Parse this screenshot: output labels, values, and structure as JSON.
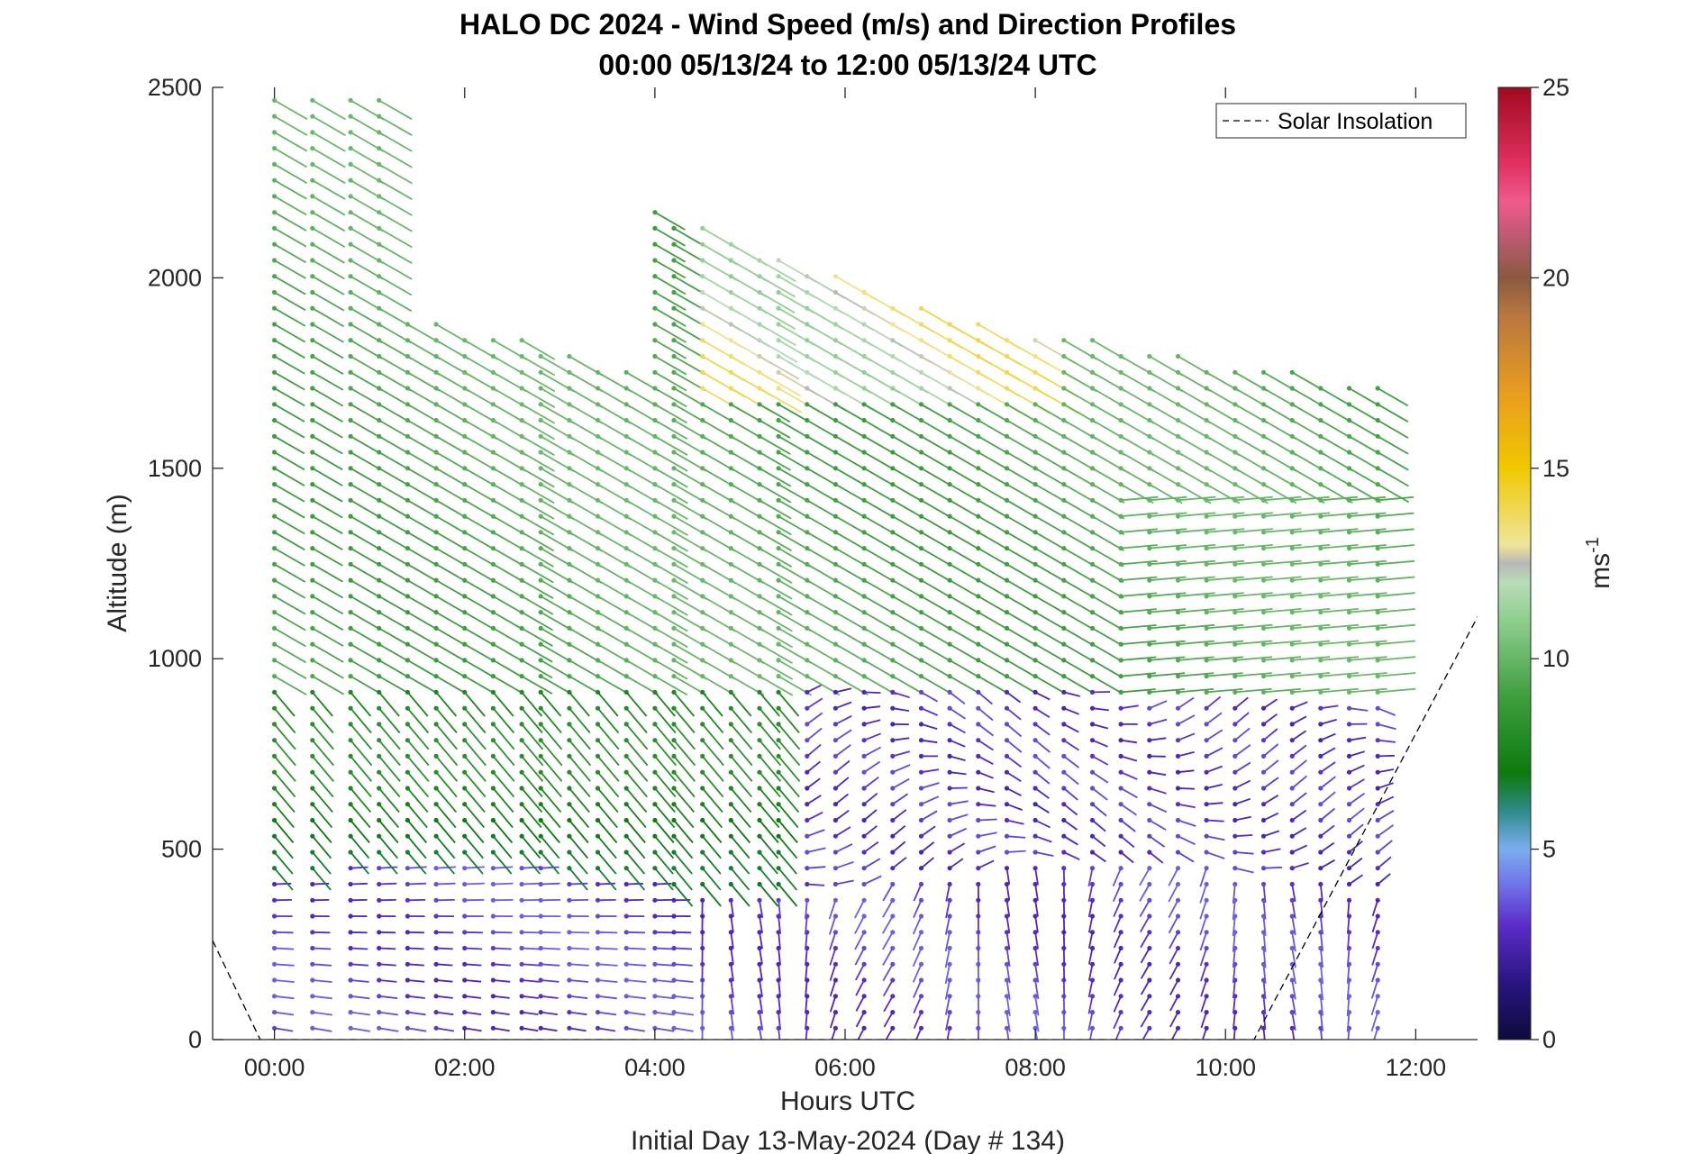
{
  "chart_data": {
    "type": "wind-barb",
    "title": "HALO DC 2024 - Wind Speed (m/s) and Direction Profiles",
    "subtitle": "00:00 05/13/24 to 12:00 05/13/24  UTC",
    "xlabel": "Hours UTC",
    "footer": "Initial Day 13-May-2024 (Day # 134)",
    "ylabel": "Altitude (m)",
    "xlim": [
      -0.65,
      12.65
    ],
    "ylim": [
      0,
      2500
    ],
    "x_ticks": [
      "00:00",
      "02:00",
      "04:00",
      "06:00",
      "08:00",
      "10:00",
      "12:00"
    ],
    "x_tick_values": [
      0,
      2,
      4,
      6,
      8,
      10,
      12
    ],
    "y_ticks": [
      0,
      500,
      1000,
      1500,
      2000,
      2500
    ],
    "colorbar": {
      "label": "ms",
      "label_exponent": "-1",
      "range": [
        0,
        25
      ],
      "ticks": [
        0,
        5,
        10,
        15,
        20,
        25
      ],
      "stops": [
        {
          "v": 0,
          "color": "#0b0b3b"
        },
        {
          "v": 1.5,
          "color": "#2a1580"
        },
        {
          "v": 3,
          "color": "#5a2cc8"
        },
        {
          "v": 4,
          "color": "#6f6fe8"
        },
        {
          "v": 5,
          "color": "#7aaef0"
        },
        {
          "v": 6,
          "color": "#2f8a8a"
        },
        {
          "v": 7,
          "color": "#0c7a0c"
        },
        {
          "v": 9,
          "color": "#3f9e3f"
        },
        {
          "v": 11,
          "color": "#8fce8f"
        },
        {
          "v": 12,
          "color": "#b8dcb8"
        },
        {
          "v": 12.5,
          "color": "#b8b8b8"
        },
        {
          "v": 13,
          "color": "#f0e59a"
        },
        {
          "v": 15,
          "color": "#f0c800"
        },
        {
          "v": 17,
          "color": "#e89c20"
        },
        {
          "v": 19,
          "color": "#b87840"
        },
        {
          "v": 20,
          "color": "#8a5a40"
        },
        {
          "v": 21,
          "color": "#b85a70"
        },
        {
          "v": 22,
          "color": "#f05a8c"
        },
        {
          "v": 23,
          "color": "#e03060"
        },
        {
          "v": 25,
          "color": "#a00a1e"
        }
      ]
    },
    "legend": {
      "label": "Solar Insolation",
      "position": "top-right"
    },
    "solar_insolation": {
      "x": [
        -0.65,
        -0.15,
        -0.15,
        10.3,
        10.3,
        12.65
      ],
      "y": [
        260,
        0,
        0,
        0,
        0,
        1110
      ]
    },
    "profile_times": [
      0.0,
      0.4,
      0.8,
      1.1,
      1.4,
      1.7,
      2.0,
      2.3,
      2.6,
      2.8,
      3.1,
      3.4,
      3.7,
      4.0,
      4.2,
      4.5,
      4.8,
      5.1,
      5.3,
      5.6,
      5.9,
      6.2,
      6.5,
      6.8,
      7.1,
      7.4,
      7.7,
      8.0,
      8.3,
      8.6,
      8.9,
      9.2,
      9.5,
      9.8,
      10.1,
      10.4,
      10.7,
      11.0,
      11.3,
      11.6
    ],
    "speed_field_description_regions": [
      {
        "region": "0-450 m",
        "speed_ms": 3.5,
        "direction_deg": 300
      },
      {
        "region": "450-1000 m before 06:00",
        "speed_ms": 7.5,
        "direction_deg": 320
      },
      {
        "region": "1000-2200 m",
        "speed_ms": 9.5,
        "direction_deg": 300
      },
      {
        "region": "1700-2100 m 04:30-08:00",
        "speed_ms": 13.5,
        "direction_deg": 295
      },
      {
        "region": "500-900 m after 06:00",
        "speed_ms": 3.0,
        "direction_deg": 270
      },
      {
        "region": "1000-1400 m after 09:00",
        "speed_ms": 8.5,
        "direction_deg": 270
      }
    ]
  }
}
